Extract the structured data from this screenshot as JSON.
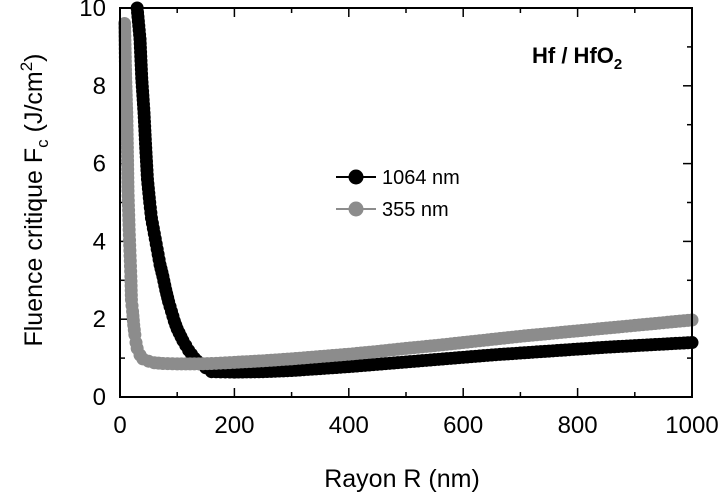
{
  "chart_data": {
    "type": "scatter",
    "xlabel": "Rayon R (nm)",
    "ylabel": {
      "main": "Fluence critique F",
      "sub": "c",
      "unit_open": " (J/cm",
      "sup": "2",
      "unit_close": ")"
    },
    "annotation": {
      "main": "Hf / HfO",
      "sub": "2"
    },
    "xlim": [
      0,
      1000
    ],
    "ylim": [
      0,
      10
    ],
    "x_ticks": [
      0,
      200,
      400,
      600,
      800,
      1000
    ],
    "y_ticks": [
      0,
      2,
      4,
      6,
      8,
      10
    ],
    "grid": false,
    "legend_position": "center",
    "series": [
      {
        "name": "1064 nm",
        "color": "#000000",
        "points": [
          [
            30,
            10.0
          ],
          [
            35,
            9.2
          ],
          [
            38,
            8.2
          ],
          [
            42,
            7.3
          ],
          [
            45,
            6.4
          ],
          [
            48,
            5.6
          ],
          [
            52,
            5.0
          ],
          [
            55,
            4.6
          ],
          [
            60,
            4.2
          ],
          [
            65,
            3.8
          ],
          [
            70,
            3.4
          ],
          [
            75,
            3.1
          ],
          [
            80,
            2.75
          ],
          [
            85,
            2.45
          ],
          [
            90,
            2.2
          ],
          [
            95,
            1.95
          ],
          [
            100,
            1.75
          ],
          [
            110,
            1.45
          ],
          [
            120,
            1.2
          ],
          [
            130,
            1.0
          ],
          [
            140,
            0.85
          ],
          [
            150,
            0.75
          ],
          [
            160,
            0.65
          ],
          [
            200,
            0.64
          ],
          [
            250,
            0.65
          ],
          [
            300,
            0.68
          ],
          [
            350,
            0.73
          ],
          [
            400,
            0.78
          ],
          [
            450,
            0.84
          ],
          [
            500,
            0.9
          ],
          [
            550,
            0.96
          ],
          [
            600,
            1.02
          ],
          [
            650,
            1.08
          ],
          [
            700,
            1.13
          ],
          [
            750,
            1.18
          ],
          [
            800,
            1.23
          ],
          [
            850,
            1.28
          ],
          [
            900,
            1.32
          ],
          [
            950,
            1.36
          ],
          [
            1000,
            1.4
          ]
        ]
      },
      {
        "name": "355 nm",
        "color": "#8c8c8c",
        "points": [
          [
            8,
            9.6
          ],
          [
            10,
            8.2
          ],
          [
            12,
            7.2
          ],
          [
            13,
            6.3
          ],
          [
            14,
            5.3
          ],
          [
            15,
            4.8
          ],
          [
            16,
            4.3
          ],
          [
            17,
            3.9
          ],
          [
            18,
            3.5
          ],
          [
            19,
            3.1
          ],
          [
            20,
            2.5
          ],
          [
            22,
            2.2
          ],
          [
            24,
            1.85
          ],
          [
            26,
            1.6
          ],
          [
            28,
            1.4
          ],
          [
            30,
            1.25
          ],
          [
            35,
            1.08
          ],
          [
            40,
            0.98
          ],
          [
            50,
            0.92
          ],
          [
            60,
            0.88
          ],
          [
            75,
            0.86
          ],
          [
            100,
            0.85
          ],
          [
            130,
            0.85
          ],
          [
            160,
            0.86
          ],
          [
            200,
            0.89
          ],
          [
            250,
            0.93
          ],
          [
            300,
            0.98
          ],
          [
            350,
            1.04
          ],
          [
            400,
            1.1
          ],
          [
            450,
            1.17
          ],
          [
            500,
            1.25
          ],
          [
            550,
            1.32
          ],
          [
            600,
            1.4
          ],
          [
            650,
            1.48
          ],
          [
            700,
            1.56
          ],
          [
            750,
            1.63
          ],
          [
            800,
            1.7
          ],
          [
            850,
            1.77
          ],
          [
            900,
            1.84
          ],
          [
            950,
            1.91
          ],
          [
            1000,
            1.98
          ]
        ]
      }
    ]
  }
}
